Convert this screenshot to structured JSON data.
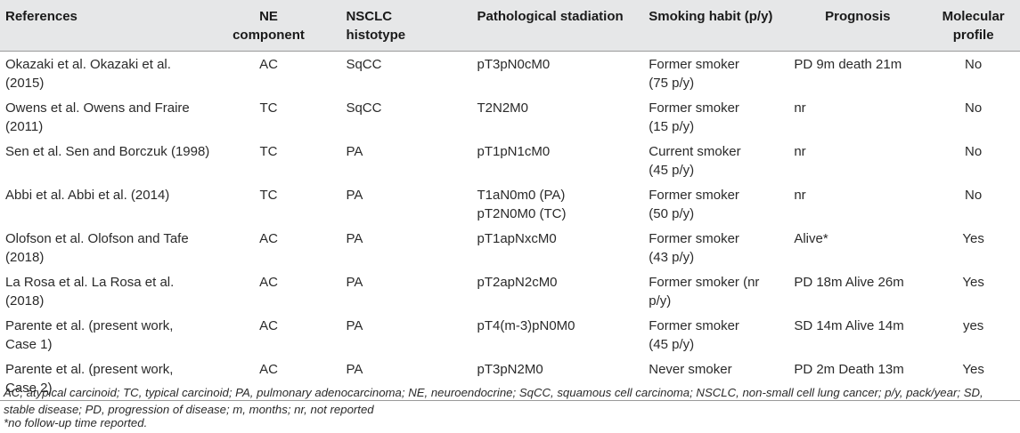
{
  "table": {
    "headers": {
      "references": "References",
      "ne_component": [
        "NE",
        "component"
      ],
      "histotype": [
        "NSCLC",
        "histotype"
      ],
      "stadiation": "Pathological stadiation",
      "smoking": "Smoking habit (p/y)",
      "prognosis": "Prognosis",
      "molecular": [
        "Molecular",
        "profile"
      ]
    },
    "rows": [
      {
        "ref": [
          "Okazaki et al. Okazaki et al. (2015)"
        ],
        "ne": "AC",
        "hist": "SqCC",
        "stage": [
          "pT3pN0cM0"
        ],
        "smoke": [
          "Former smoker",
          "(75 p/y)"
        ],
        "prog": "PD 9m death 21m",
        "mol": "No"
      },
      {
        "ref": [
          "Owens et al. Owens and Fraire",
          "(2011)"
        ],
        "ne": "TC",
        "hist": "SqCC",
        "stage": [
          "T2N2M0"
        ],
        "smoke": [
          "Former smoker",
          "(15 p/y)"
        ],
        "prog": "nr",
        "mol": "No"
      },
      {
        "ref": [
          "Sen et al. Sen and Borczuk (1998)"
        ],
        "ne": "TC",
        "hist": "PA",
        "stage": [
          "pT1pN1cM0"
        ],
        "smoke": [
          "Current smoker",
          "(45 p/y)"
        ],
        "prog": "nr",
        "mol": "No"
      },
      {
        "ref": [
          "Abbi et al. Abbi et al. (2014)"
        ],
        "ne": "TC",
        "hist": "PA",
        "stage": [
          "T1aN0m0 (PA)",
          "pT2N0M0 (TC)"
        ],
        "smoke": [
          "Former smoker",
          "(50 p/y)"
        ],
        "prog": "nr",
        "mol": "No"
      },
      {
        "ref": [
          "Olofson et al. Olofson and Tafe",
          "(2018)"
        ],
        "ne": "AC",
        "hist": "PA",
        "stage": [
          "pT1apNxcM0"
        ],
        "smoke": [
          "Former smoker",
          "(43 p/y)"
        ],
        "prog": "Alive*",
        "mol": "Yes"
      },
      {
        "ref": [
          "La Rosa et al. La Rosa et al. (2018)"
        ],
        "ne": "AC",
        "hist": "PA",
        "stage": [
          "pT2apN2cM0"
        ],
        "smoke": [
          "Former smoker (nr",
          "p/y)"
        ],
        "prog": "PD 18m Alive 26m",
        "mol": "Yes"
      },
      {
        "ref": [
          "Parente et al. (present work,",
          "Case 1)"
        ],
        "ne": "AC",
        "hist": "PA",
        "stage": [
          "pT4(m-3)pN0M0"
        ],
        "smoke": [
          "Former smoker",
          "(45 p/y)"
        ],
        "prog": "SD 14m Alive 14m",
        "mol": "yes"
      },
      {
        "ref": [
          "Parente et al. (present work,",
          "Case 2)"
        ],
        "ne": "AC",
        "hist": "PA",
        "stage": [
          "pT3pN2M0"
        ],
        "smoke": [
          "Never smoker"
        ],
        "prog": "PD 2m Death 13m",
        "mol": "Yes"
      }
    ]
  },
  "footnotes": {
    "abbreviations": "AC, atypical carcinoid; TC, typical carcinoid; PA, pulmonary adenocarcinoma; NE, neuroendocrine; SqCC, squamous cell carcinoma; NSCLC, non-small cell lung cancer; p/y, pack/year; SD, stable disease; PD, progression of disease; m, months; nr, not reported",
    "asterisk": "*no follow-up time reported."
  }
}
